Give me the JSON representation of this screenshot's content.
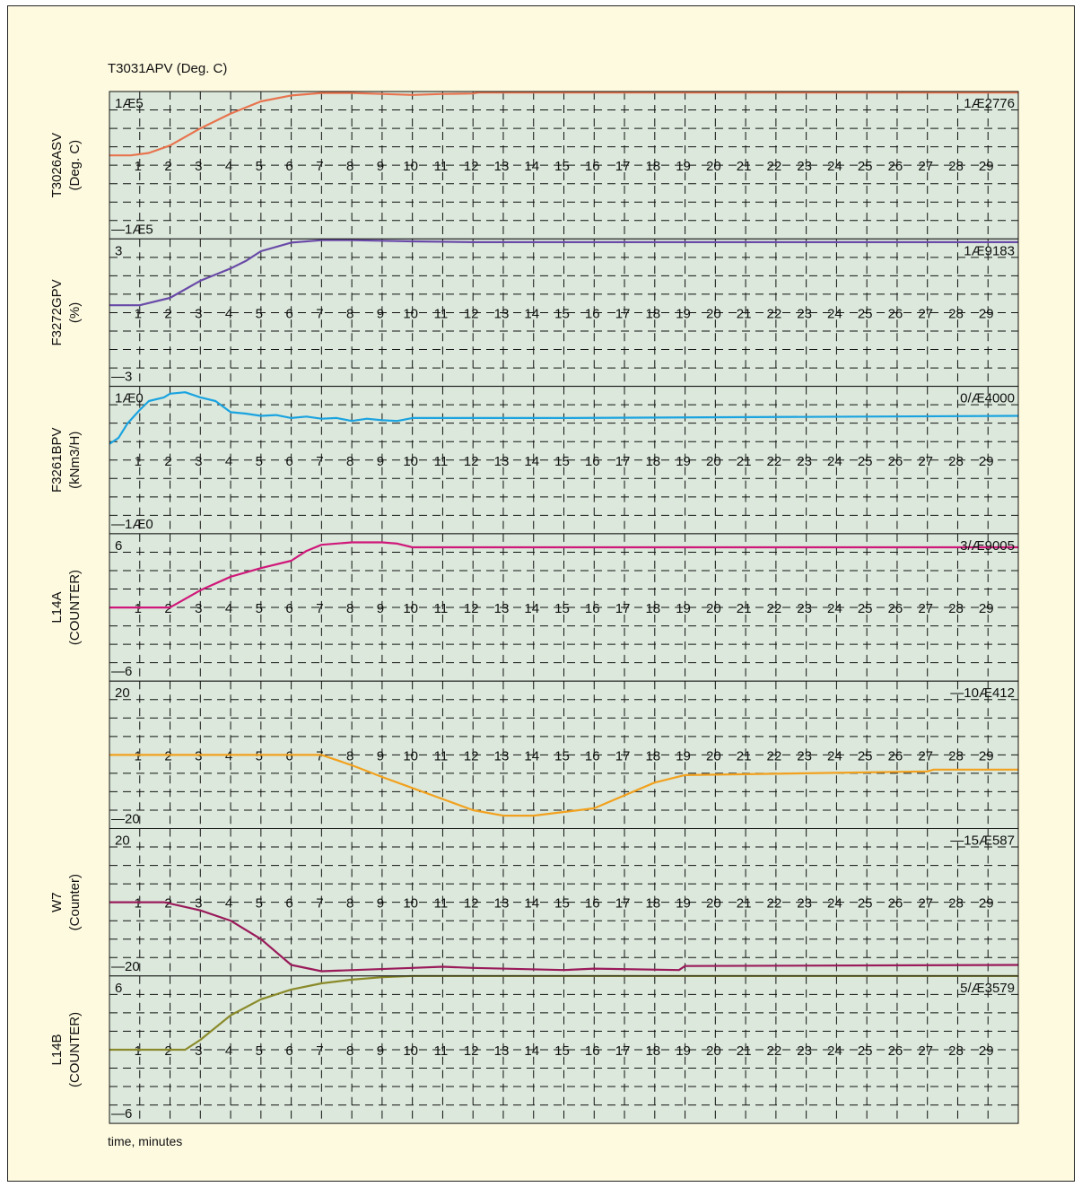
{
  "header": {
    "title": "T3031APV (Deg. C)"
  },
  "footer": {
    "xlabel": "time, minutes"
  },
  "chart_data": {
    "type": "line",
    "xlim": [
      0,
      30
    ],
    "x_ticks": [
      1,
      2,
      3,
      4,
      5,
      6,
      7,
      8,
      9,
      10,
      11,
      12,
      13,
      14,
      15,
      16,
      17,
      18,
      19,
      20,
      21,
      22,
      23,
      24,
      25,
      26,
      27,
      28,
      29
    ],
    "grid": true,
    "colors": {
      "background": "#dbe8db",
      "grid": "#111111",
      "frame": "#fefae0"
    },
    "panels": [
      {
        "ylabel": [
          "T3026ASV",
          "(Deg. C)"
        ],
        "ymax_label": "1Æ5",
        "ymin_label": "—1Æ5",
        "current_value": "1Æ2776",
        "ylim": [
          -1.5,
          1.5
        ],
        "color": "#e8734e",
        "points": [
          [
            0,
            0.2
          ],
          [
            0.7,
            0.2
          ],
          [
            1.3,
            0.25
          ],
          [
            2,
            0.4
          ],
          [
            3,
            0.75
          ],
          [
            4,
            1.05
          ],
          [
            5,
            1.3
          ],
          [
            6,
            1.42
          ],
          [
            7,
            1.47
          ],
          [
            8,
            1.47
          ],
          [
            9,
            1.45
          ],
          [
            10,
            1.43
          ],
          [
            11,
            1.45
          ],
          [
            12,
            1.46
          ],
          [
            12.2,
            1.48
          ],
          [
            30,
            1.48
          ]
        ]
      },
      {
        "ylabel": [
          "F3272GPV",
          "(%)"
        ],
        "ymax_label": "3",
        "ymin_label": "—3",
        "current_value": "1Æ9183",
        "ylim": [
          -3,
          3
        ],
        "color": "#6a4aa8",
        "points": [
          [
            0,
            0.3
          ],
          [
            1,
            0.3
          ],
          [
            2,
            0.6
          ],
          [
            3,
            1.3
          ],
          [
            4,
            1.8
          ],
          [
            4.5,
            2.1
          ],
          [
            5,
            2.5
          ],
          [
            6,
            2.85
          ],
          [
            7,
            2.95
          ],
          [
            8,
            2.95
          ],
          [
            10,
            2.9
          ],
          [
            12,
            2.87
          ],
          [
            30,
            2.87
          ]
        ]
      },
      {
        "ylabel": [
          "F3261BPV",
          "(kNm3/H)"
        ],
        "ymax_label": "1Æ0",
        "ymin_label": "—1Æ0",
        "current_value": "0/Æ4000",
        "ylim": [
          -1.0,
          1.0
        ],
        "color": "#1aa3e0",
        "points": [
          [
            0,
            0.22
          ],
          [
            0.3,
            0.3
          ],
          [
            0.6,
            0.5
          ],
          [
            1,
            0.68
          ],
          [
            1.3,
            0.8
          ],
          [
            1.8,
            0.85
          ],
          [
            2,
            0.9
          ],
          [
            2.5,
            0.92
          ],
          [
            3,
            0.85
          ],
          [
            3.5,
            0.8
          ],
          [
            4,
            0.65
          ],
          [
            4.5,
            0.63
          ],
          [
            5,
            0.6
          ],
          [
            5.5,
            0.61
          ],
          [
            6,
            0.57
          ],
          [
            6.5,
            0.59
          ],
          [
            7,
            0.56
          ],
          [
            7.5,
            0.57
          ],
          [
            8,
            0.53
          ],
          [
            8.5,
            0.56
          ],
          [
            9,
            0.54
          ],
          [
            9.5,
            0.53
          ],
          [
            10,
            0.57
          ],
          [
            15,
            0.57
          ],
          [
            30,
            0.6
          ]
        ]
      },
      {
        "ylabel": [
          "L14A",
          "(COUNTER)"
        ],
        "ymax_label": "6",
        "ymin_label": "—6",
        "current_value": "3/Æ9005",
        "ylim": [
          -6,
          6
        ],
        "color": "#d0187a",
        "points": [
          [
            0,
            0
          ],
          [
            2,
            0
          ],
          [
            3,
            1.4
          ],
          [
            4,
            2.5
          ],
          [
            5,
            3.2
          ],
          [
            6,
            3.8
          ],
          [
            6.5,
            4.6
          ],
          [
            7,
            5.1
          ],
          [
            8,
            5.3
          ],
          [
            9,
            5.3
          ],
          [
            9.5,
            5.2
          ],
          [
            10,
            4.9
          ],
          [
            30,
            4.9
          ]
        ]
      },
      {
        "ylabel": [],
        "ymax_label": "20",
        "ymin_label": "—20",
        "current_value": "—10Æ412",
        "ylim": [
          -20,
          20
        ],
        "color": "#f2a11e",
        "points": [
          [
            0,
            0
          ],
          [
            7,
            0
          ],
          [
            8,
            -2.8
          ],
          [
            9,
            -6
          ],
          [
            10,
            -9
          ],
          [
            11,
            -12
          ],
          [
            12,
            -15
          ],
          [
            13,
            -16.5
          ],
          [
            14,
            -16.5
          ],
          [
            15,
            -15.5
          ],
          [
            16,
            -14.5
          ],
          [
            17,
            -11
          ],
          [
            18,
            -7.5
          ],
          [
            19,
            -5.5
          ],
          [
            27,
            -4.5
          ],
          [
            27.2,
            -4
          ],
          [
            30,
            -4
          ]
        ]
      },
      {
        "ylabel": [
          "W7",
          "(Counter)"
        ],
        "ymax_label": "20",
        "ymin_label": "—20",
        "current_value": "—15Æ587",
        "ylim": [
          -20,
          20
        ],
        "color": "#9a1a5a",
        "points": [
          [
            0,
            0
          ],
          [
            1.8,
            0
          ],
          [
            3,
            -2.2
          ],
          [
            4,
            -5
          ],
          [
            5,
            -10
          ],
          [
            6,
            -17
          ],
          [
            7,
            -18.7
          ],
          [
            10,
            -17.8
          ],
          [
            11,
            -17.5
          ],
          [
            12,
            -17.8
          ],
          [
            15,
            -18.4
          ],
          [
            16,
            -18
          ],
          [
            18.8,
            -18.4
          ],
          [
            19,
            -17.3
          ],
          [
            30,
            -17
          ]
        ]
      },
      {
        "ylabel": [
          "L14B",
          "(COUNTER)"
        ],
        "ymax_label": "6",
        "ymin_label": "—6",
        "current_value": "5/Æ3579",
        "ylim": [
          -6,
          6
        ],
        "color": "#8a8a2a",
        "points": [
          [
            0,
            0
          ],
          [
            2.5,
            0
          ],
          [
            3,
            0.8
          ],
          [
            4,
            2.8
          ],
          [
            5,
            4.1
          ],
          [
            6,
            4.9
          ],
          [
            7,
            5.4
          ],
          [
            8,
            5.7
          ],
          [
            9,
            5.9
          ],
          [
            10,
            6
          ],
          [
            30,
            6
          ]
        ]
      }
    ]
  }
}
